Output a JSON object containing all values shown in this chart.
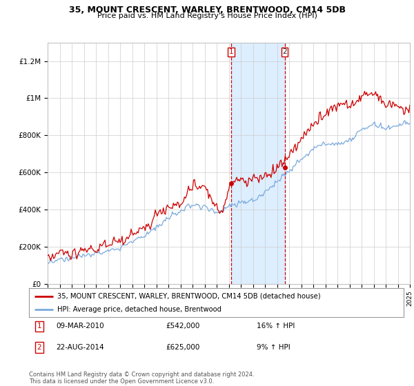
{
  "title": "35, MOUNT CRESCENT, WARLEY, BRENTWOOD, CM14 5DB",
  "subtitle": "Price paid vs. HM Land Registry's House Price Index (HPI)",
  "hpi_label": "HPI: Average price, detached house, Brentwood",
  "price_label": "35, MOUNT CRESCENT, WARLEY, BRENTWOOD, CM14 5DB (detached house)",
  "footnote": "Contains HM Land Registry data © Crown copyright and database right 2024.\nThis data is licensed under the Open Government Licence v3.0.",
  "transaction1": {
    "label": "1",
    "date": "09-MAR-2010",
    "price": "£542,000",
    "hpi": "16% ↑ HPI",
    "year": 2010.18
  },
  "transaction2": {
    "label": "2",
    "date": "22-AUG-2014",
    "price": "£625,000",
    "hpi": "9% ↑ HPI",
    "year": 2014.63
  },
  "red_color": "#cc0000",
  "blue_color": "#7aaadd",
  "shade_color": "#ddeeff",
  "background_color": "#ffffff",
  "grid_color": "#cccccc",
  "ylim": [
    0,
    1300000
  ],
  "yticks": [
    0,
    200000,
    400000,
    600000,
    800000,
    1000000,
    1200000
  ],
  "ytick_labels": [
    "£0",
    "£200K",
    "£400K",
    "£600K",
    "£800K",
    "£1M",
    "£1.2M"
  ],
  "xstart": 1995,
  "xend": 2025,
  "title_fontsize": 9,
  "subtitle_fontsize": 8
}
